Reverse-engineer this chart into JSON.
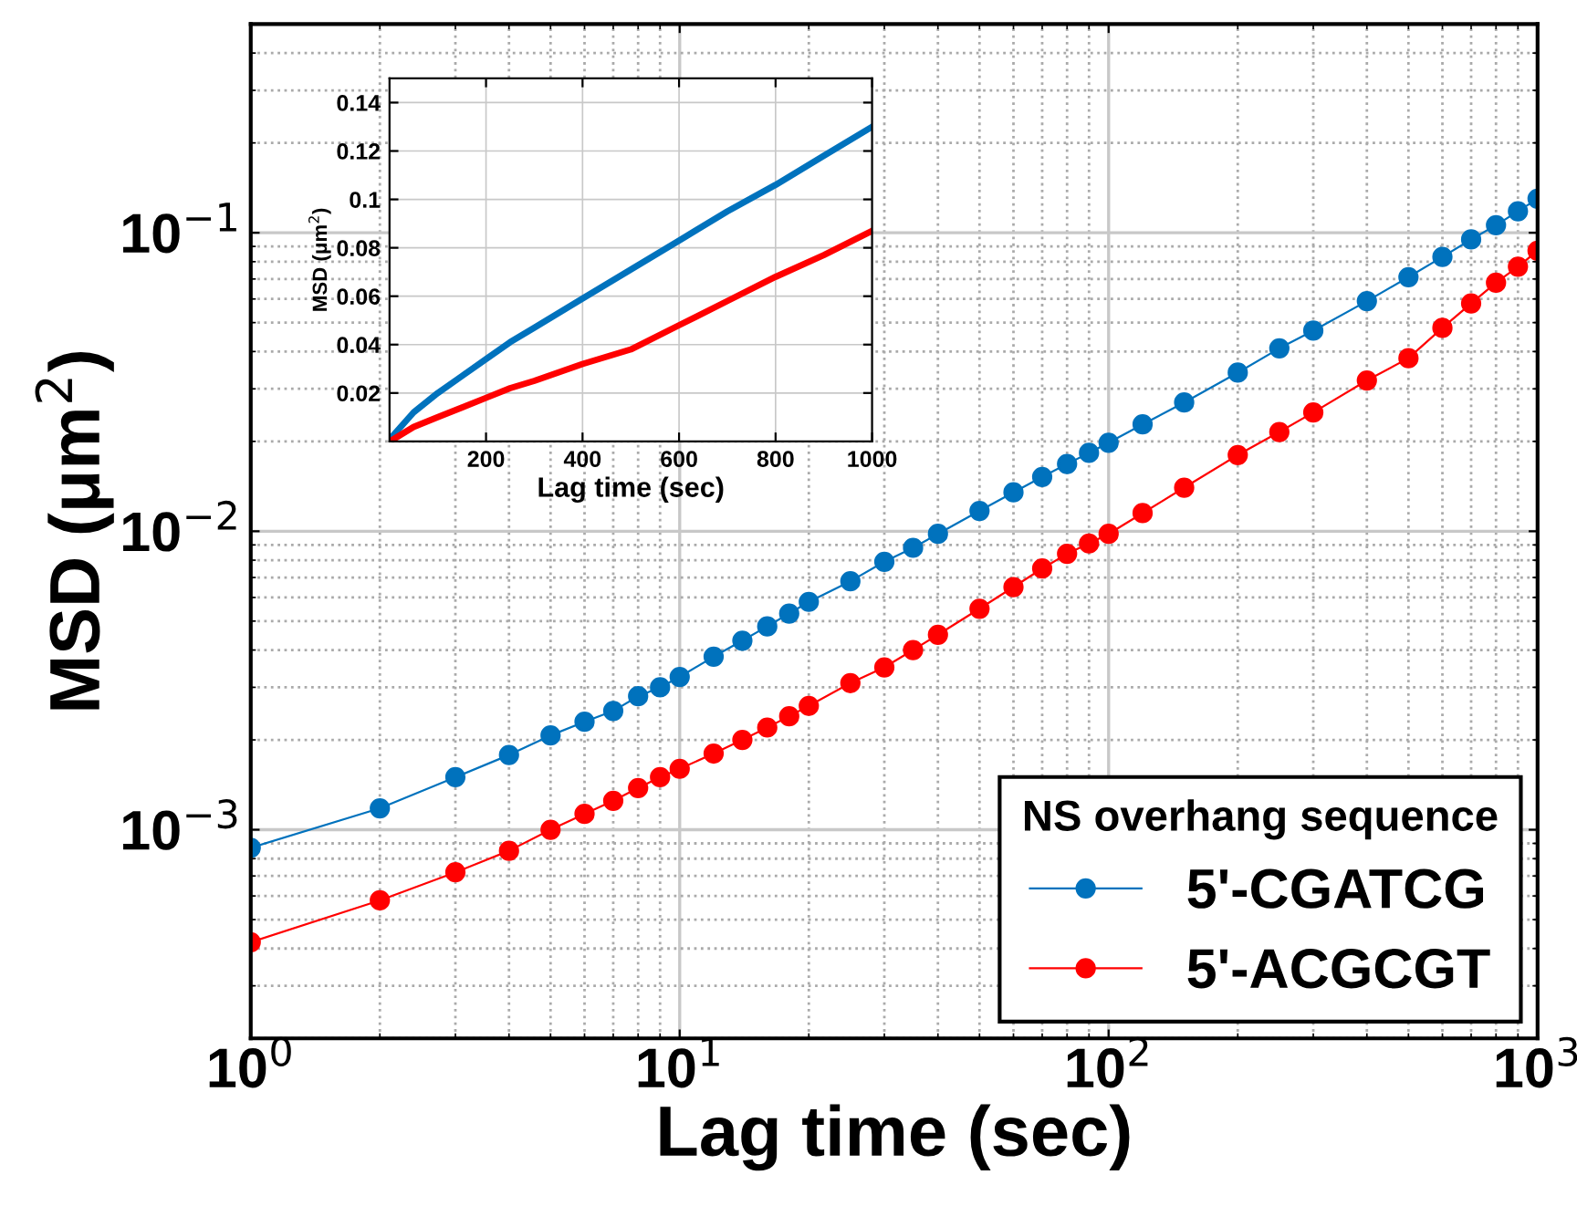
{
  "chart_data": [
    {
      "type": "line",
      "xlabel": "Lag time (sec)",
      "log": "xy",
      "legend_title": "NS overhang sequence",
      "legend": "bottom right",
      "grid": true,
      "marker": "circle",
      "line_style": "solid",
      "ylabel": "MSD (μm$^{2}$)",
      "xlim": [
        1,
        1000
      ],
      "xticks": [
        {
          "value": 1,
          "label": "10$^{0}$"
        },
        {
          "value": 10,
          "label": "10$^{1}$"
        },
        {
          "value": 100,
          "label": "10$^{2}$"
        },
        {
          "value": 1000,
          "label": "10$^{3}$"
        }
      ],
      "ylim": [
        0.0002,
        0.5
      ],
      "yticks": [
        {
          "value": 0.001,
          "label": "10$^{−3}$"
        },
        {
          "value": 0.01,
          "label": "10$^{−2}$"
        },
        {
          "value": 0.1,
          "label": "10$^{−1}$"
        }
      ],
      "x": [
        1,
        2,
        3,
        4,
        5,
        6,
        7,
        8,
        9,
        10,
        12,
        14,
        16,
        18,
        20,
        25,
        30,
        35,
        40,
        50,
        60,
        70,
        80,
        90,
        100,
        120,
        150,
        200,
        250,
        300,
        400,
        500,
        600,
        700,
        800,
        900,
        1000
      ],
      "series": [
        {
          "name": "5'-CGATCG",
          "color": "#0072bd",
          "values": [
            0.00087,
            0.00118,
            0.0015,
            0.00178,
            0.00207,
            0.0023,
            0.0025,
            0.0028,
            0.003,
            0.00325,
            0.0038,
            0.0043,
            0.0048,
            0.0053,
            0.0058,
            0.0068,
            0.0079,
            0.0088,
            0.0098,
            0.0117,
            0.0135,
            0.0152,
            0.0168,
            0.0183,
            0.0198,
            0.0228,
            0.027,
            0.034,
            0.041,
            0.047,
            0.059,
            0.071,
            0.083,
            0.095,
            0.106,
            0.118,
            0.13
          ]
        },
        {
          "name": "5'-ACGCGT",
          "color": "#ff0000",
          "values": [
            0.00042,
            0.00058,
            0.00072,
            0.00085,
            0.001,
            0.00113,
            0.00125,
            0.00138,
            0.0015,
            0.0016,
            0.0018,
            0.002,
            0.0022,
            0.0024,
            0.0026,
            0.0031,
            0.0035,
            0.004,
            0.0045,
            0.0055,
            0.0065,
            0.0075,
            0.0084,
            0.0091,
            0.0098,
            0.0115,
            0.014,
            0.018,
            0.0215,
            0.025,
            0.032,
            0.038,
            0.048,
            0.058,
            0.068,
            0.077,
            0.087
          ]
        }
      ]
    },
    {
      "type": "line",
      "xlabel": "Lag time (sec)",
      "ylabel": "MSD (μm$^{2}$)",
      "grid": true,
      "line_style": "solid",
      "xlim": [
        0,
        1000
      ],
      "xticks": [
        200,
        400,
        600,
        800,
        1000
      ],
      "ylim": [
        0,
        0.15
      ],
      "yticks": [
        0.02,
        0.04,
        0.06,
        0.08,
        0.1,
        0.12,
        0.14
      ],
      "x": [
        1,
        50,
        100,
        150,
        200,
        250,
        300,
        400,
        500,
        600,
        700,
        800,
        900,
        1000
      ],
      "series": [
        {
          "color": "#0072bd",
          "values": [
            0.001,
            0.012,
            0.02,
            0.027,
            0.034,
            0.041,
            0.047,
            0.059,
            0.071,
            0.083,
            0.095,
            0.106,
            0.118,
            0.13
          ]
        },
        {
          "color": "#ff0000",
          "values": [
            0.0,
            0.006,
            0.01,
            0.014,
            0.018,
            0.022,
            0.025,
            0.032,
            0.038,
            0.048,
            0.058,
            0.068,
            0.077,
            0.087
          ]
        }
      ]
    }
  ]
}
